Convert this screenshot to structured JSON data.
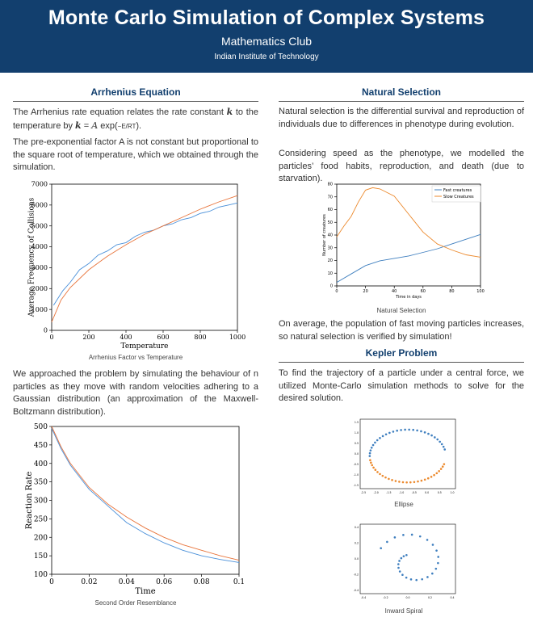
{
  "header": {
    "title": "Monte Carlo Simulation of Complex Systems",
    "subtitle": "Mathematics Club",
    "institution": "Indian Institute of Technology",
    "bg_color": "#123f6e"
  },
  "arrhenius": {
    "heading": "Arrhenius Equation",
    "para1": "The Arrhenius rate equation relates the rate constant k to the temperature by k = A exp(−E/RT).",
    "para2": "The pre-exponential factor A is not constant but proportional to the square root of temperature, which we obtained through the simulation.",
    "caption": "Arrhenius Factor vs Temperature",
    "para3": "We approached the problem by simulating the behaviour of n particles as they move with random velocities adhering to a Gaussian distribution (an approximation of the Maxwell-Boltzmann distribution).",
    "caption2": "Second Order Resemblance"
  },
  "natural": {
    "heading": "Natural Selection",
    "para1": "Natural selection is the differential survival and reproduction of individuals due to differences in phenotype during evolution.",
    "para2": "Considering speed as the phenotype, we modelled the particles’ food habits, reproduction, and death (due to starvation).",
    "caption": "Natural Selection",
    "para3": "On average, the population of fast moving particles increases, so natural selection is verified by simulation!"
  },
  "kepler": {
    "heading": "Kepler Problem",
    "para1": "To find the trajectory of a particle under a central force, we utilized Monte-Carlo simulation methods to solve for the desired solution.",
    "caption1": "Ellipse",
    "caption2": "Inward Spiral"
  },
  "chart_data": [
    {
      "type": "line",
      "xlabel": "Temperature",
      "ylabel": "Average Frequency of Collisions",
      "xlim": [
        0,
        1000
      ],
      "ylim": [
        0,
        7000
      ],
      "xticks": [
        "0",
        "200",
        "400",
        "600",
        "800",
        "1000"
      ],
      "yticks": [
        "0",
        "1000",
        "2000",
        "3000",
        "4000",
        "5000",
        "6000",
        "7000"
      ],
      "series": [
        {
          "color": "#4a90d9",
          "x": [
            10,
            60,
            100,
            150,
            200,
            250,
            300,
            350,
            400,
            450,
            500,
            550,
            600,
            650,
            700,
            750,
            800,
            850,
            900,
            950,
            1000
          ],
          "y": [
            1200,
            1900,
            2300,
            2900,
            3200,
            3600,
            3800,
            4100,
            4200,
            4500,
            4700,
            4800,
            5000,
            5100,
            5300,
            5400,
            5600,
            5700,
            5900,
            6000,
            6100
          ]
        },
        {
          "color": "#e8743b",
          "x": [
            0,
            50,
            100,
            200,
            300,
            400,
            500,
            600,
            700,
            800,
            900,
            1000
          ],
          "y": [
            400,
            1450,
            2050,
            2900,
            3550,
            4100,
            4600,
            5000,
            5400,
            5800,
            6150,
            6450
          ]
        }
      ]
    },
    {
      "type": "line",
      "xlabel": "Time",
      "ylabel": "Reaction Rate",
      "xlim": [
        0,
        0.1
      ],
      "ylim": [
        100,
        500
      ],
      "xticks": [
        "0",
        "0.02",
        "0.04",
        "0.06",
        "0.08",
        "0.1"
      ],
      "yticks": [
        "100",
        "150",
        "200",
        "250",
        "300",
        "350",
        "400",
        "450",
        "500"
      ],
      "series": [
        {
          "color": "#4a90d9",
          "x": [
            0,
            0.005,
            0.01,
            0.02,
            0.03,
            0.04,
            0.05,
            0.06,
            0.07,
            0.08,
            0.09,
            0.1
          ],
          "y": [
            495,
            440,
            395,
            330,
            285,
            240,
            210,
            185,
            165,
            150,
            140,
            132
          ]
        },
        {
          "color": "#e8743b",
          "x": [
            0,
            0.005,
            0.01,
            0.02,
            0.03,
            0.04,
            0.05,
            0.06,
            0.07,
            0.08,
            0.09,
            0.1
          ],
          "y": [
            500,
            445,
            400,
            335,
            290,
            255,
            225,
            200,
            180,
            165,
            150,
            138
          ]
        }
      ]
    },
    {
      "type": "line",
      "xlabel": "Time in days",
      "ylabel": "Number of creatures",
      "xlim": [
        0,
        100
      ],
      "ylim": [
        0,
        85
      ],
      "xticks": [
        "0",
        "20",
        "40",
        "60",
        "80",
        "100"
      ],
      "yticks": [
        "0",
        "10",
        "20",
        "30",
        "40",
        "50",
        "60",
        "70",
        "80"
      ],
      "legend": "top-right",
      "series": [
        {
          "name": "Fast creatures",
          "color": "#3f7fbf",
          "x": [
            0,
            10,
            20,
            30,
            40,
            50,
            60,
            70,
            80,
            90,
            100
          ],
          "y": [
            3,
            10,
            17,
            21,
            23,
            25,
            28,
            31,
            35,
            39,
            43
          ]
        },
        {
          "name": "Slow Creatures",
          "color": "#ec8a2e",
          "x": [
            0,
            5,
            10,
            15,
            20,
            25,
            30,
            40,
            50,
            60,
            70,
            80,
            90,
            100
          ],
          "y": [
            41,
            50,
            58,
            70,
            80,
            82,
            81,
            75,
            60,
            45,
            35,
            30,
            26,
            24
          ]
        }
      ]
    },
    {
      "type": "scatter",
      "title": "Ellipse",
      "xlim": [
        -2.8,
        1.2
      ],
      "ylim": [
        -1.5,
        1.5
      ],
      "xticks": [
        "-2.5",
        "-2.0",
        "-1.5",
        "-1.0",
        "-0.5",
        "0.0",
        "0.5",
        "1.0"
      ],
      "yticks": [
        "-1.5",
        "-1.0",
        "-0.5",
        "0.0",
        "0.5",
        "1.0",
        "1.5"
      ],
      "series": [
        {
          "color": "#3f7fbf",
          "name": "upper"
        },
        {
          "color": "#ec8a2e",
          "name": "lower"
        }
      ]
    },
    {
      "type": "scatter",
      "title": "Inward Spiral",
      "xlim": [
        -0.5,
        0.5
      ],
      "ylim": [
        -0.5,
        0.6
      ],
      "xticks": [
        "-0.4",
        "-0.2",
        "0.0",
        "0.2",
        "0.4"
      ],
      "yticks": [
        "-0.4",
        "-0.2",
        "0.0",
        "0.2",
        "0.4"
      ],
      "series": [
        {
          "color": "#3f7fbf"
        }
      ]
    }
  ]
}
